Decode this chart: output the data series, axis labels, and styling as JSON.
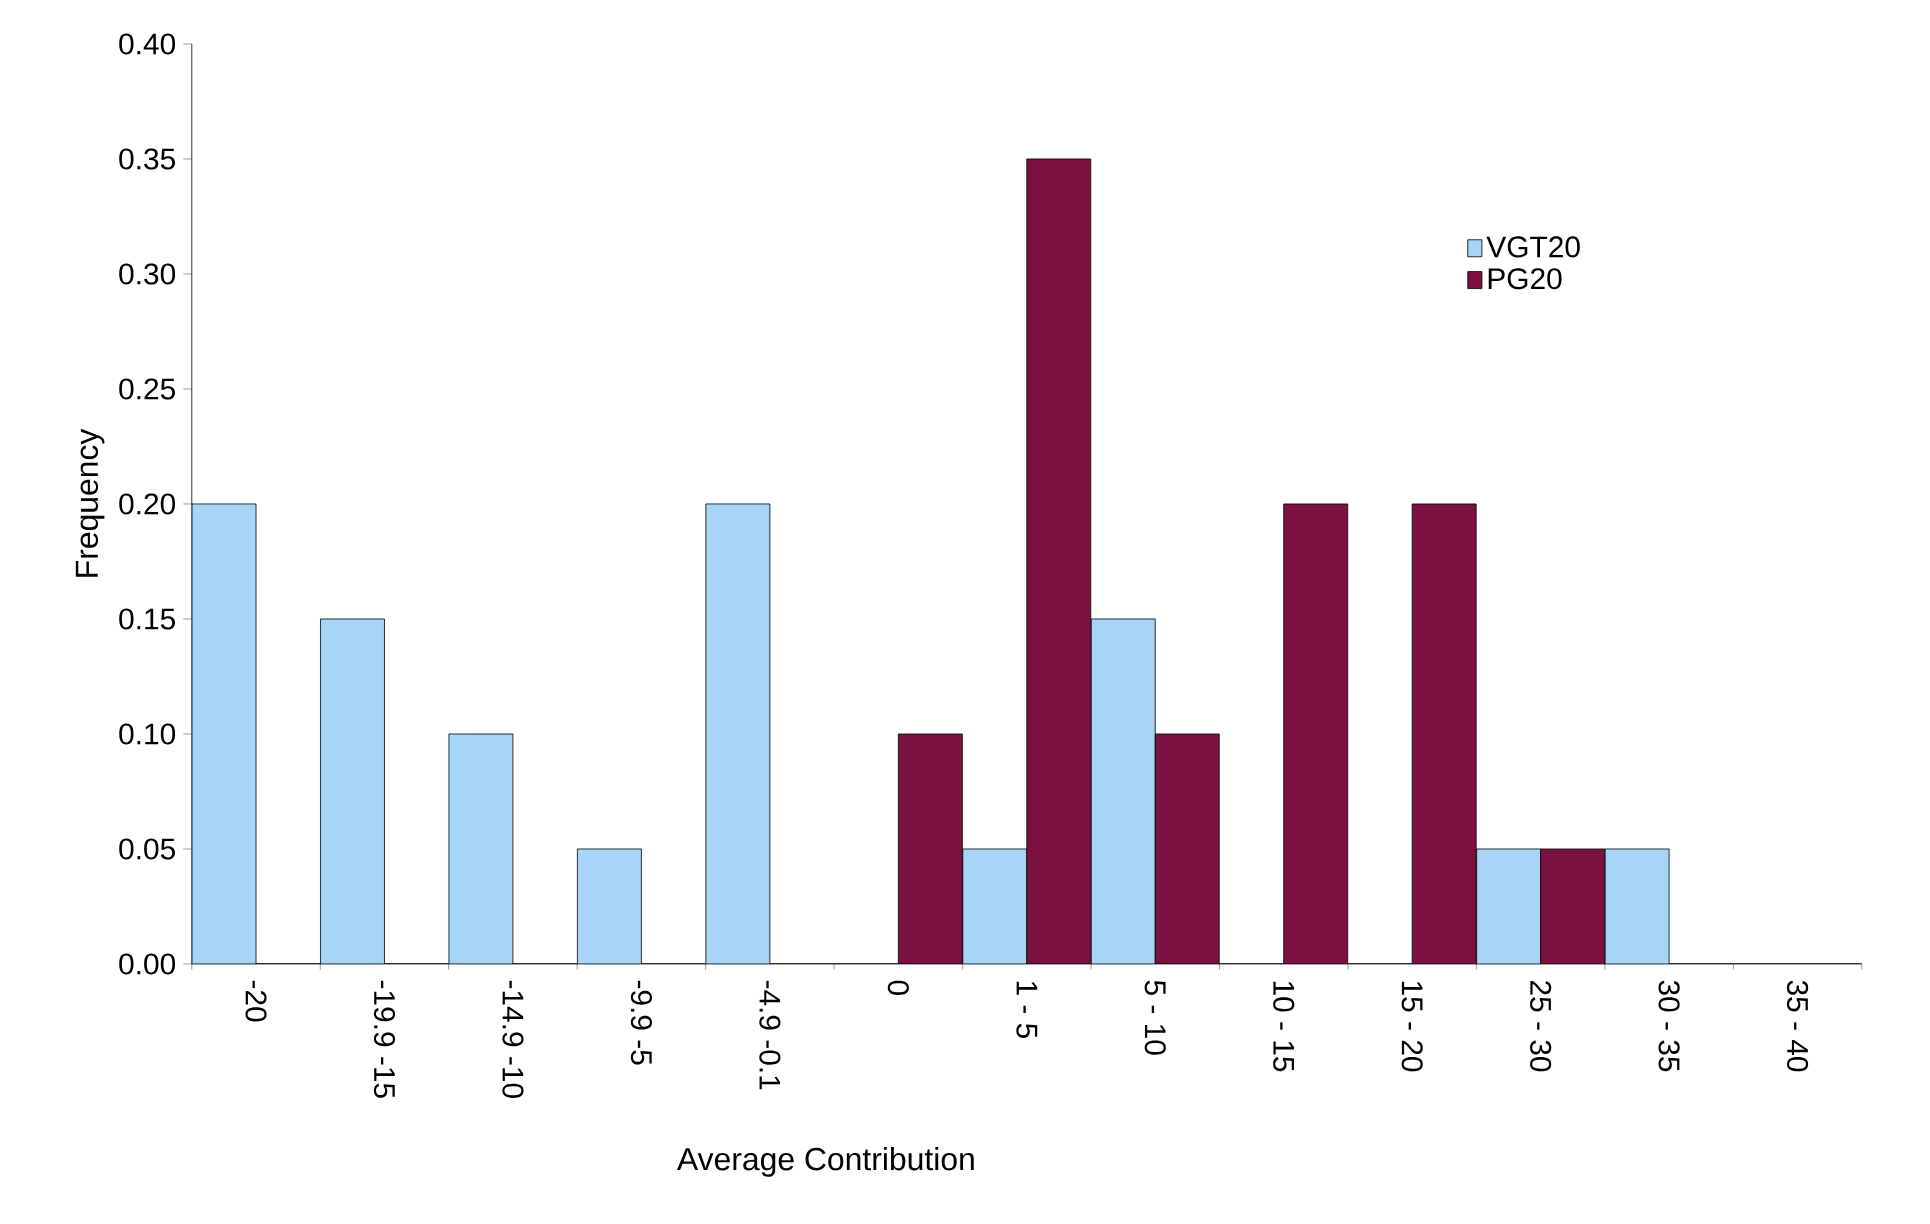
{
  "chart_data": {
    "type": "bar",
    "xlabel": "Average Contribution",
    "ylabel": "Frequency",
    "categories": [
      "-20",
      "-19.9 -15",
      "-14.9 -10",
      "-9.9 -5",
      "-4.9 -0.1",
      "0",
      "1 - 5",
      "5 - 10",
      "10 - 15",
      "15 - 20",
      "25 - 30",
      "30 - 35",
      "35 - 40"
    ],
    "series": [
      {
        "name": "VGT20",
        "color": "#a6d5f8",
        "values": [
          0.2,
          0.15,
          0.1,
          0.05,
          0.2,
          0,
          0.05,
          0.15,
          0,
          0,
          0.05,
          0.05,
          0
        ]
      },
      {
        "name": "PG20",
        "color": "#7b1141",
        "values": [
          0,
          0,
          0,
          0,
          0,
          0.1,
          0.35,
          0.1,
          0.2,
          0.2,
          0.05,
          0,
          0
        ]
      }
    ],
    "ylim": [
      0,
      0.4
    ],
    "yticks": [
      {
        "value": 0,
        "label": "0.00"
      },
      {
        "value": 0.05,
        "label": "0.05"
      },
      {
        "value": 0.1,
        "label": "0.10"
      },
      {
        "value": 0.15,
        "label": "0.15"
      },
      {
        "value": 0.2,
        "label": "0.20"
      },
      {
        "value": 0.25,
        "label": "0.25"
      },
      {
        "value": 0.3,
        "label": "0.30"
      },
      {
        "value": 0.35,
        "label": "0.35"
      },
      {
        "value": 0.4,
        "label": "0.40"
      }
    ],
    "legend": "right",
    "grid": false
  }
}
